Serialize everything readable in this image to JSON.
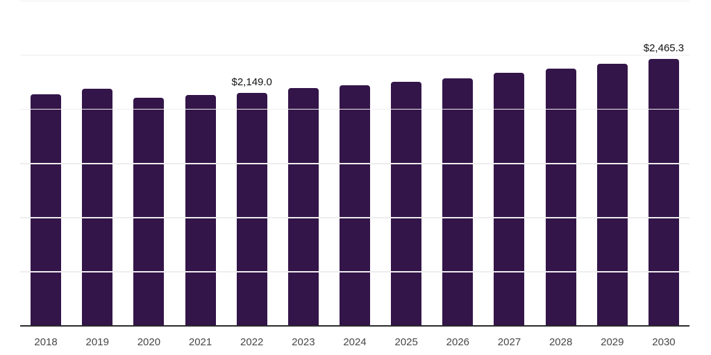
{
  "chart": {
    "background_color": "#ffffff",
    "bar_color": "#331549",
    "grid_color": "#eeeeee",
    "axis_color": "#2a2a2a",
    "value_label_color": "#111111",
    "tick_label_color": "#474747"
  },
  "chart_data": {
    "type": "bar",
    "title": "",
    "xlabel": "",
    "ylabel": "",
    "categories": [
      "2018",
      "2019",
      "2020",
      "2021",
      "2022",
      "2023",
      "2024",
      "2025",
      "2026",
      "2027",
      "2028",
      "2029",
      "2030"
    ],
    "values": [
      2136,
      2189,
      2104,
      2131,
      2149.0,
      2193,
      2217,
      2249,
      2285,
      2334,
      2372,
      2419,
      2465.3
    ],
    "value_labels": [
      "",
      "",
      "",
      "",
      "$2,149.0",
      "",
      "",
      "",
      "",
      "",
      "",
      "",
      "$2,465.3"
    ],
    "ylim": [
      0,
      3000
    ],
    "grid_step": 500,
    "gridlines": "horizontal",
    "legend_position": "none",
    "y_axis_tick_labels_visible": false
  }
}
